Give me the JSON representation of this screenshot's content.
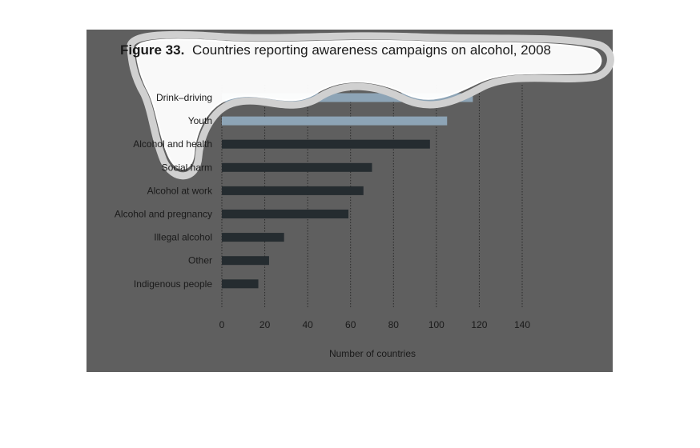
{
  "colors": {
    "figure_background": "#5f5f5f",
    "bar": "#252c30",
    "bar_highlight": "#8da4b6",
    "text": "#1a1a1a",
    "highlight_stroke": "#ffffff",
    "highlight_fill": "#ffffff"
  },
  "chart_data": {
    "type": "bar",
    "orientation": "horizontal",
    "title_prefix": "Figure 33.",
    "title": "Countries reporting awareness campaigns on alcohol, 2008",
    "xlabel": "Number of countries",
    "ylabel": "",
    "xlim": [
      0,
      140
    ],
    "xticks": [
      "0",
      "20",
      "40",
      "60",
      "80",
      "100",
      "120",
      "140"
    ],
    "grid": "vertical dotted",
    "categories": [
      "Drink–driving",
      "Youth",
      "Alcohol and health",
      "Social harm",
      "Alcohol at work",
      "Alcohol and pregnancy",
      "Illegal alcohol",
      "Other",
      "Indigenous people"
    ],
    "values": [
      117,
      105,
      97,
      70,
      66,
      59,
      29,
      22,
      17
    ],
    "highlighted_categories": [
      "Drink–driving",
      "Youth"
    ]
  }
}
